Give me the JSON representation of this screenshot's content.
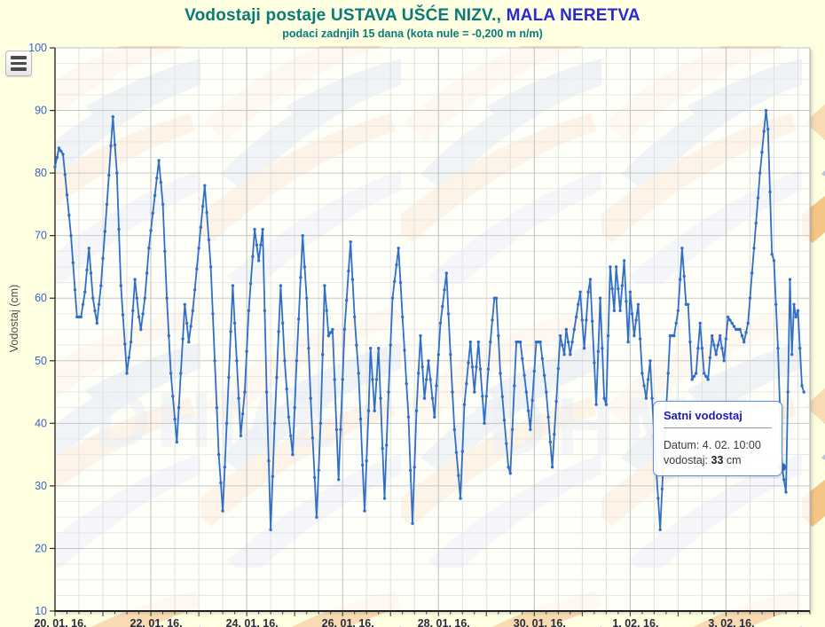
{
  "header": {
    "title_prefix": "Vodostaji postaje ",
    "title_station": "USTAVA UŠĆE NIZV.,",
    "title_river": " MALA NERETVA",
    "subtitle": "podaci zadnjih 15 dana (kota nule = -0,200 m n/m)"
  },
  "watermark": {
    "text": "DHMZ"
  },
  "tooltip": {
    "header": "Satni vodostaj",
    "date_label": "Datum:",
    "date_value": "4. 02. 10:00",
    "value_label": "vodostaj:",
    "value": "33",
    "unit": "cm"
  },
  "chart_data": {
    "type": "line",
    "series_name": "Satni vodostaj",
    "title": "Vodostaji postaje USTAVA UŠĆE NIZV., MALA NERETVA",
    "subtitle": "podaci zadnjih 15 dana (kota nule = -0,200 m n/m)",
    "ylabel": "Vodostaj (cm)",
    "ylim": [
      10,
      100
    ],
    "y_tick_step": 10,
    "y_minor_step": 2.5,
    "x_tick_labels": [
      "20. 01. 16.",
      "22. 01. 16.",
      "24. 01. 16.",
      "26. 01. 16.",
      "28. 01. 16.",
      "30. 01. 16.",
      "1. 02. 16.",
      "3. 02. 16."
    ],
    "x_tick_hours": [
      0,
      48,
      96,
      144,
      192,
      240,
      288,
      336
    ],
    "x_minor_step_hours": 12,
    "x_range_hours": 378,
    "grid": true,
    "line_color": "#2f6fc8",
    "axis_label_color_y": "#3a62c8",
    "axis_label_color_x": "#2b2b3a",
    "points_h_v": [
      [
        0,
        81
      ],
      [
        2,
        84
      ],
      [
        4,
        83
      ],
      [
        8,
        70
      ],
      [
        11,
        57
      ],
      [
        13,
        57
      ],
      [
        15,
        61
      ],
      [
        17,
        68
      ],
      [
        19,
        60
      ],
      [
        21,
        56
      ],
      [
        23,
        62
      ],
      [
        26,
        75
      ],
      [
        29,
        89
      ],
      [
        31,
        80
      ],
      [
        33,
        62
      ],
      [
        36,
        48
      ],
      [
        38,
        53
      ],
      [
        40,
        63
      ],
      [
        42,
        57
      ],
      [
        43,
        55
      ],
      [
        45,
        60
      ],
      [
        47,
        68
      ],
      [
        52,
        82
      ],
      [
        54,
        75
      ],
      [
        56,
        60
      ],
      [
        58,
        48
      ],
      [
        61,
        37
      ],
      [
        63,
        48
      ],
      [
        65,
        59
      ],
      [
        67,
        53
      ],
      [
        69,
        58
      ],
      [
        72,
        68
      ],
      [
        75,
        78
      ],
      [
        78,
        65
      ],
      [
        80,
        50
      ],
      [
        82,
        35
      ],
      [
        84,
        26
      ],
      [
        86,
        40
      ],
      [
        89,
        62
      ],
      [
        91,
        50
      ],
      [
        93,
        38
      ],
      [
        95,
        45
      ],
      [
        97,
        58
      ],
      [
        100,
        71
      ],
      [
        102,
        66
      ],
      [
        104,
        71
      ],
      [
        106,
        45
      ],
      [
        108,
        23
      ],
      [
        110,
        40
      ],
      [
        113,
        62
      ],
      [
        115,
        50
      ],
      [
        117,
        41
      ],
      [
        119,
        35
      ],
      [
        121,
        50
      ],
      [
        124,
        70
      ],
      [
        126,
        60
      ],
      [
        128,
        44
      ],
      [
        131,
        25
      ],
      [
        133,
        40
      ],
      [
        135,
        62
      ],
      [
        137,
        54
      ],
      [
        139,
        55
      ],
      [
        142,
        31
      ],
      [
        145,
        55
      ],
      [
        148,
        69
      ],
      [
        150,
        57
      ],
      [
        152,
        48
      ],
      [
        155,
        26
      ],
      [
        157,
        42
      ],
      [
        158,
        52
      ],
      [
        160,
        42
      ],
      [
        162,
        52
      ],
      [
        165,
        28
      ],
      [
        167,
        45
      ],
      [
        169,
        60
      ],
      [
        172,
        68
      ],
      [
        174,
        57
      ],
      [
        177,
        41
      ],
      [
        179,
        24
      ],
      [
        181,
        42
      ],
      [
        183,
        54
      ],
      [
        185,
        44
      ],
      [
        187,
        50
      ],
      [
        190,
        41
      ],
      [
        193,
        56
      ],
      [
        196,
        64
      ],
      [
        198,
        51
      ],
      [
        200,
        39
      ],
      [
        203,
        28
      ],
      [
        205,
        43
      ],
      [
        208,
        53
      ],
      [
        210,
        45
      ],
      [
        212,
        53
      ],
      [
        215,
        40
      ],
      [
        218,
        53
      ],
      [
        220,
        60
      ],
      [
        221,
        60
      ],
      [
        223,
        48
      ],
      [
        227,
        33
      ],
      [
        228,
        32
      ],
      [
        231,
        53
      ],
      [
        233,
        53
      ],
      [
        236,
        45
      ],
      [
        238,
        39
      ],
      [
        241,
        53
      ],
      [
        243,
        53
      ],
      [
        246,
        45
      ],
      [
        249,
        33
      ],
      [
        253,
        54
      ],
      [
        255,
        51
      ],
      [
        256,
        55
      ],
      [
        258,
        51
      ],
      [
        260,
        55
      ],
      [
        263,
        61
      ],
      [
        265,
        52
      ],
      [
        267,
        61
      ],
      [
        268,
        63
      ],
      [
        271,
        43
      ],
      [
        273,
        60
      ],
      [
        275,
        44
      ],
      [
        276,
        43
      ],
      [
        278,
        65
      ],
      [
        280,
        58
      ],
      [
        281,
        65
      ],
      [
        283,
        58
      ],
      [
        285,
        66
      ],
      [
        287,
        53
      ],
      [
        288,
        61
      ],
      [
        290,
        54
      ],
      [
        292,
        59
      ],
      [
        294,
        48
      ],
      [
        296,
        44
      ],
      [
        298,
        50
      ],
      [
        300,
        38
      ],
      [
        303,
        23
      ],
      [
        305,
        36
      ],
      [
        308,
        54
      ],
      [
        310,
        54
      ],
      [
        312,
        58
      ],
      [
        314,
        68
      ],
      [
        316,
        59
      ],
      [
        317,
        59
      ],
      [
        319,
        47
      ],
      [
        321,
        48
      ],
      [
        323,
        56
      ],
      [
        325,
        48
      ],
      [
        327,
        47
      ],
      [
        329,
        54
      ],
      [
        331,
        51
      ],
      [
        333,
        54
      ],
      [
        335,
        50
      ],
      [
        337,
        57
      ],
      [
        339,
        56
      ],
      [
        341,
        55
      ],
      [
        343,
        55
      ],
      [
        345,
        53
      ],
      [
        347,
        56
      ],
      [
        350,
        68
      ],
      [
        353,
        80
      ],
      [
        356,
        90
      ],
      [
        357,
        87
      ],
      [
        358,
        77
      ],
      [
        359,
        67
      ],
      [
        360,
        66
      ],
      [
        362,
        52
      ],
      [
        364,
        33
      ],
      [
        366,
        29
      ],
      [
        367,
        45
      ],
      [
        368,
        63
      ],
      [
        369,
        51
      ],
      [
        370,
        59
      ],
      [
        371,
        57
      ],
      [
        372,
        58
      ],
      [
        373,
        52
      ],
      [
        374,
        46
      ],
      [
        375,
        45
      ]
    ],
    "highlight": {
      "hour": 364,
      "value": 33
    }
  }
}
